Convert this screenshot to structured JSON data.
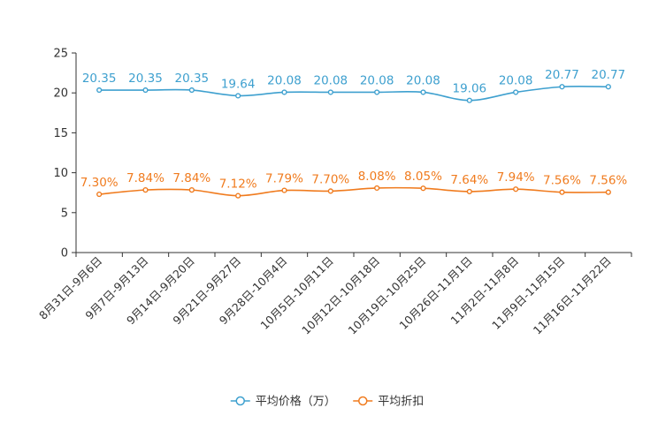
{
  "chart_data": {
    "type": "line",
    "title": "",
    "xlabel": "",
    "ylabel": "",
    "ylim": [
      0,
      25
    ],
    "yticks": [
      0,
      5,
      10,
      15,
      20,
      25
    ],
    "grid": false,
    "legend_position": "bottom-center",
    "categories": [
      "8月31日-9月6日",
      "9月7日-9月13日",
      "9月14日-9月20日",
      "9月21日-9月27日",
      "9月28日-10月4日",
      "10月5日-10月11日",
      "10月12日-10月18日",
      "10月19日-10月25日",
      "10月26日-11月1日",
      "11月2日-11月8日",
      "11月9日-11月15日",
      "11月16日-11月22日"
    ],
    "series": [
      {
        "name": "平均价格（万）",
        "color": "#3ea0cf",
        "values": [
          20.35,
          20.35,
          20.35,
          19.64,
          20.08,
          20.08,
          20.08,
          20.08,
          19.06,
          20.08,
          20.77,
          20.77
        ],
        "labels": [
          "20.35",
          "20.35",
          "20.35",
          "19.64",
          "20.08",
          "20.08",
          "20.08",
          "20.08",
          "19.06",
          "20.08",
          "20.77",
          "20.77"
        ]
      },
      {
        "name": "平均折扣",
        "color": "#f07b1e",
        "values": [
          7.3,
          7.84,
          7.84,
          7.12,
          7.79,
          7.7,
          8.08,
          8.05,
          7.64,
          7.94,
          7.56,
          7.56
        ],
        "labels": [
          "7.30%",
          "7.84%",
          "7.84%",
          "7.12%",
          "7.79%",
          "7.70%",
          "8.08%",
          "8.05%",
          "7.64%",
          "7.94%",
          "7.56%",
          "7.56%"
        ]
      }
    ]
  }
}
